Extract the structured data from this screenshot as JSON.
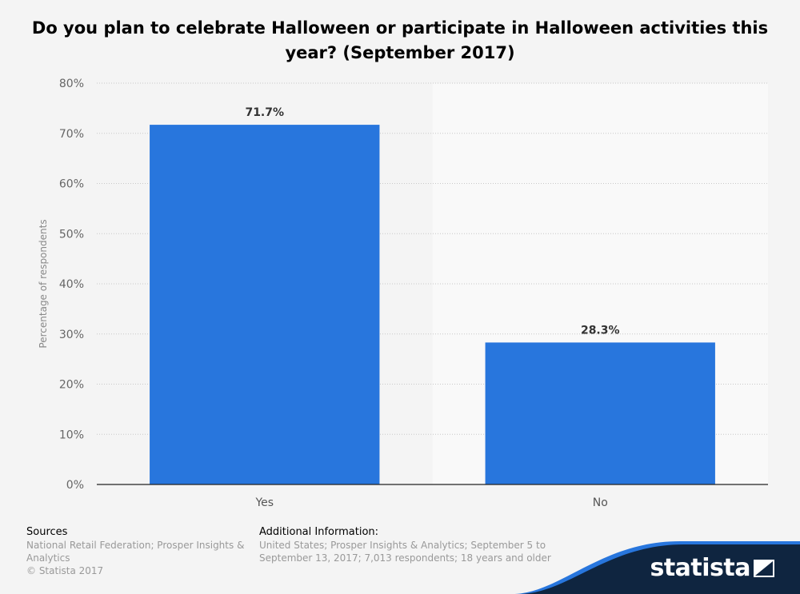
{
  "title": "Do you plan to celebrate Halloween or participate in Halloween activities this year? (September 2017)",
  "chart_data": {
    "type": "bar",
    "title": "Do you plan to celebrate Halloween or participate in Halloween activities this year? (September 2017)",
    "categories": [
      "Yes",
      "No"
    ],
    "values": [
      71.7,
      28.3
    ],
    "value_labels": [
      "71.7%",
      "28.3%"
    ],
    "ylabel": "Percentage of respondents",
    "xlabel": "",
    "ylim": [
      0,
      80
    ],
    "yticks": [
      0,
      10,
      20,
      30,
      40,
      50,
      60,
      70,
      80
    ],
    "ytick_labels": [
      "0%",
      "10%",
      "20%",
      "30%",
      "40%",
      "50%",
      "60%",
      "70%",
      "80%"
    ],
    "grid": true,
    "bar_color": "#2876dd"
  },
  "footer": {
    "sources_heading": "Sources",
    "sources_text": "National Retail Federation; Prosper Insights & Analytics",
    "copyright": "© Statista 2017",
    "additional_heading": "Additional Information:",
    "additional_text": "United States; Prosper Insights & Analytics; September 5 to September 13, 2017; 7,013 respondents; 18 years and older"
  },
  "brand": {
    "name": "statista",
    "primary_color": "#0f2540",
    "accent_color": "#2876dd"
  }
}
